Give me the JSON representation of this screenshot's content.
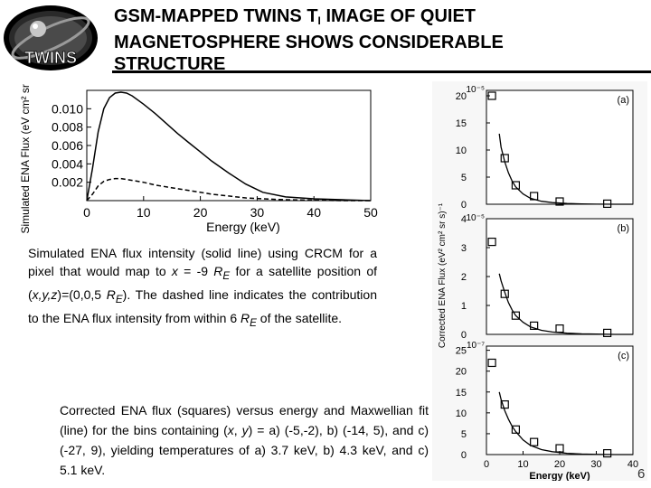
{
  "header": {
    "logo_text": "TWINS",
    "title_line1_pre": "GSM-MAPPED TWINS T",
    "title_line1_sub": "I",
    "title_line1_post": " IMAGE OF QUIET",
    "title_line2": "MAGNETOSPHERE  SHOWS CONSIDERABLE",
    "title_line3": "STRUCTURE"
  },
  "caption1": {
    "t1": "Simulated ENA flux intensity (solid line) using CRCM for a pixel that would map to ",
    "t2": "x",
    "t3": " = -9 ",
    "t4": "R",
    "t5": "E",
    "t6": " for a satellite position of (",
    "t7": "x,y,z",
    "t8": ")=(0,0,5 ",
    "t9": "R",
    "t10": "E",
    "t11": "). The dashed line indicates the contribution to the ENA flux intensity from within 6 ",
    "t12": "R",
    "t13": "E",
    "t14": " of the satellite."
  },
  "caption2": {
    "t1": "Corrected ENA flux (squares) versus energy and Maxwellian fit (line) for the bins containing (",
    "t2": "x",
    "t3": ", ",
    "t4": "y",
    "t5": ") = a) (-5,-2), b) (-14, 5), and c) (-27, 9), yielding temperatures of a) 3.7 keV, b) 4.3 keV, and c) 5.1 keV."
  },
  "page_number": "6",
  "chart_data": [
    {
      "type": "line",
      "xlabel": "Energy (keV)",
      "ylabel": "Simulated ENA Flux (eV cm² sr s)⁻¹",
      "xlim": [
        0,
        50
      ],
      "ylim": [
        0,
        0.012
      ],
      "x_ticks": [
        "0",
        "10",
        "20",
        "30",
        "40",
        "50"
      ],
      "y_ticks": [
        "0.002",
        "0.004",
        "0.006",
        "0.008",
        "0.010"
      ],
      "series": [
        {
          "style": "solid",
          "x": [
            0,
            1,
            2,
            3,
            4,
            5,
            6,
            7,
            8,
            10,
            12,
            14,
            16,
            18,
            20,
            22,
            25,
            28,
            31,
            35,
            40,
            45,
            50
          ],
          "y": [
            0,
            0.0035,
            0.0075,
            0.01,
            0.0112,
            0.0117,
            0.0118,
            0.0117,
            0.0114,
            0.0105,
            0.0095,
            0.0084,
            0.0073,
            0.0063,
            0.0053,
            0.0043,
            0.003,
            0.0018,
            0.0009,
            0.0004,
            0.0002,
            0.0001,
            0
          ]
        },
        {
          "style": "dashed",
          "x": [
            0,
            1,
            2,
            3,
            4,
            5,
            6,
            7,
            8,
            10,
            12,
            14,
            16,
            18,
            20,
            22,
            25,
            28,
            31,
            35,
            40,
            45,
            50
          ],
          "y": [
            0,
            0.0007,
            0.0016,
            0.0021,
            0.0023,
            0.0024,
            0.0024,
            0.0023,
            0.0022,
            0.002,
            0.0017,
            0.0015,
            0.0013,
            0.0011,
            0.0009,
            0.0007,
            0.0005,
            0.0003,
            0.0002,
            0.0001,
            5e-05,
            0,
            0
          ]
        }
      ]
    },
    {
      "type": "scatter",
      "panels": [
        {
          "label": "(a)",
          "exponent": "10⁻⁵",
          "y_ticks": [
            "5",
            "10",
            "15",
            "20"
          ],
          "ylim": [
            0,
            21
          ],
          "x": [
            1.5,
            5,
            8,
            13,
            20,
            33
          ],
          "values": [
            20,
            8.5,
            3.5,
            1.5,
            0.5,
            0.1
          ],
          "fit": {
            "x": [
              3.5,
              4,
              5,
              6,
              7,
              8,
              10,
              12,
              15,
              18,
              22,
              26,
              30,
              35,
              40
            ],
            "y": [
              13,
              10.5,
              7.8,
              5.8,
              4.3,
              3.2,
              1.9,
              1.1,
              0.55,
              0.3,
              0.14,
              0.06,
              0.02,
              0.005,
              0
            ]
          }
        },
        {
          "label": "(b)",
          "exponent": "10⁻⁵",
          "y_ticks": [
            "1",
            "2",
            "3",
            "4"
          ],
          "ylim": [
            0,
            4
          ],
          "x": [
            1.5,
            5,
            8,
            13,
            20,
            33
          ],
          "values": [
            3.2,
            1.4,
            0.65,
            0.3,
            0.2,
            0.05
          ],
          "fit": {
            "x": [
              3.5,
              4,
              5,
              6,
              7,
              8,
              10,
              12,
              15,
              18,
              22,
              26,
              30,
              35,
              40
            ],
            "y": [
              2.1,
              1.85,
              1.45,
              1.1,
              0.85,
              0.65,
              0.42,
              0.26,
              0.14,
              0.08,
              0.04,
              0.02,
              0.01,
              0,
              0
            ]
          }
        },
        {
          "label": "(c)",
          "exponent": "10⁻⁷",
          "y_ticks": [
            "5",
            "10",
            "15",
            "20",
            "25"
          ],
          "ylim": [
            0,
            26
          ],
          "x": [
            1.5,
            5,
            8,
            13,
            20,
            33
          ],
          "values": [
            22,
            12,
            6,
            3,
            1.5,
            0.3
          ],
          "fit": {
            "x": [
              3.5,
              4,
              5,
              6,
              7,
              8,
              10,
              12,
              15,
              18,
              22,
              26,
              30,
              35,
              40
            ],
            "y": [
              15,
              13.2,
              10.5,
              8.5,
              6.8,
              5.5,
              3.5,
              2.2,
              1.2,
              0.7,
              0.3,
              0.13,
              0.05,
              0.01,
              0
            ]
          }
        }
      ],
      "xlim": [
        0,
        40
      ],
      "x_ticks": [
        "0",
        "10",
        "20",
        "30",
        "40"
      ],
      "xlabel": "Energy (keV)",
      "ylabel": "Corrected ENA Flux (eV² cm² sr s)⁻¹"
    }
  ]
}
